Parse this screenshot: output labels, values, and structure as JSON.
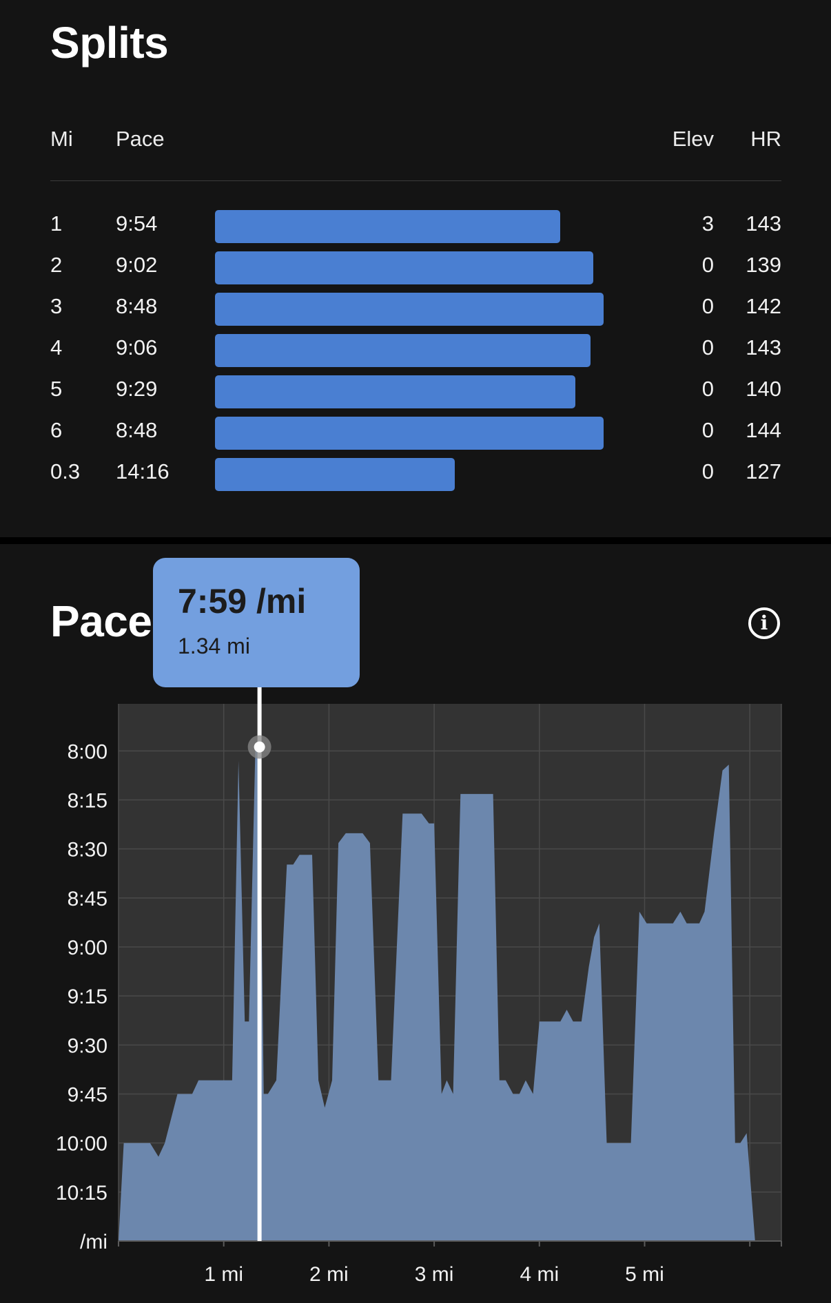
{
  "splits": {
    "title": "Splits",
    "headers": {
      "mi": "Mi",
      "pace": "Pace",
      "elev": "Elev",
      "hr": "HR"
    },
    "rows": [
      {
        "mi": "1",
        "pace": "9:54",
        "elev": "3",
        "hr": "143",
        "speed_mph": 6.06
      },
      {
        "mi": "2",
        "pace": "9:02",
        "elev": "0",
        "hr": "139",
        "speed_mph": 6.64
      },
      {
        "mi": "3",
        "pace": "8:48",
        "elev": "0",
        "hr": "142",
        "speed_mph": 6.82
      },
      {
        "mi": "4",
        "pace": "9:06",
        "elev": "0",
        "hr": "143",
        "speed_mph": 6.59
      },
      {
        "mi": "5",
        "pace": "9:29",
        "elev": "0",
        "hr": "140",
        "speed_mph": 6.33
      },
      {
        "mi": "6",
        "pace": "8:48",
        "elev": "0",
        "hr": "144",
        "speed_mph": 6.82
      },
      {
        "mi": "0.3",
        "pace": "14:16",
        "elev": "0",
        "hr": "127",
        "speed_mph": 4.21
      }
    ],
    "bar_color": "#4a7fd2"
  },
  "pace": {
    "title": "Pace",
    "info_icon": "info-icon",
    "tooltip": {
      "value": "7:59 /mi",
      "distance": "1.34 mi"
    }
  },
  "chart_data": {
    "type": "area",
    "y_ticks": [
      "8:00",
      "8:15",
      "8:30",
      "8:45",
      "9:00",
      "9:15",
      "9:30",
      "9:45",
      "10:00",
      "10:15"
    ],
    "y_unit_label": "/mi",
    "x_ticks": [
      "1 mi",
      "2 mi",
      "3 mi",
      "4 mi",
      "5 mi"
    ],
    "xlim_mi": [
      0,
      6.3
    ],
    "y_range_sec_per_mi": [
      7.76,
      10.5
    ],
    "y_axis_reversed": true,
    "grid": true,
    "fill_color": "#6c87ad",
    "plot_bg": "#333333",
    "cursor": {
      "x_mi": 1.34,
      "pace_min_per_mi": 7.98
    },
    "points": [
      [
        0.0,
        10.5
      ],
      [
        0.05,
        10.0
      ],
      [
        0.1,
        10.0
      ],
      [
        0.2,
        10.0
      ],
      [
        0.3,
        10.0
      ],
      [
        0.38,
        10.07
      ],
      [
        0.44,
        10.0
      ],
      [
        0.56,
        9.75
      ],
      [
        0.7,
        9.75
      ],
      [
        0.76,
        9.68
      ],
      [
        0.88,
        9.68
      ],
      [
        1.0,
        9.68
      ],
      [
        1.08,
        9.68
      ],
      [
        1.14,
        8.05
      ],
      [
        1.2,
        9.38
      ],
      [
        1.24,
        9.38
      ],
      [
        1.3,
        8.0
      ],
      [
        1.34,
        7.98
      ],
      [
        1.38,
        9.75
      ],
      [
        1.42,
        9.75
      ],
      [
        1.5,
        9.68
      ],
      [
        1.6,
        8.58
      ],
      [
        1.66,
        8.58
      ],
      [
        1.72,
        8.53
      ],
      [
        1.84,
        8.53
      ],
      [
        1.9,
        9.68
      ],
      [
        1.96,
        9.82
      ],
      [
        2.03,
        9.68
      ],
      [
        2.09,
        8.47
      ],
      [
        2.16,
        8.42
      ],
      [
        2.32,
        8.42
      ],
      [
        2.39,
        8.47
      ],
      [
        2.47,
        9.68
      ],
      [
        2.59,
        9.68
      ],
      [
        2.7,
        8.32
      ],
      [
        2.88,
        8.32
      ],
      [
        2.95,
        8.37
      ],
      [
        3.0,
        8.37
      ],
      [
        3.07,
        9.75
      ],
      [
        3.12,
        9.68
      ],
      [
        3.18,
        9.75
      ],
      [
        3.25,
        8.22
      ],
      [
        3.56,
        8.22
      ],
      [
        3.62,
        9.68
      ],
      [
        3.68,
        9.68
      ],
      [
        3.75,
        9.75
      ],
      [
        3.81,
        9.75
      ],
      [
        3.87,
        9.68
      ],
      [
        3.94,
        9.75
      ],
      [
        4.0,
        9.38
      ],
      [
        4.1,
        9.38
      ],
      [
        4.2,
        9.38
      ],
      [
        4.26,
        9.32
      ],
      [
        4.32,
        9.38
      ],
      [
        4.4,
        9.38
      ],
      [
        4.47,
        9.1
      ],
      [
        4.52,
        8.95
      ],
      [
        4.57,
        8.88
      ],
      [
        4.64,
        10.0
      ],
      [
        4.71,
        10.0
      ],
      [
        4.8,
        10.0
      ],
      [
        4.87,
        10.0
      ],
      [
        4.95,
        8.82
      ],
      [
        5.02,
        8.88
      ],
      [
        5.1,
        8.88
      ],
      [
        5.2,
        8.88
      ],
      [
        5.27,
        8.88
      ],
      [
        5.34,
        8.82
      ],
      [
        5.4,
        8.88
      ],
      [
        5.52,
        8.88
      ],
      [
        5.57,
        8.82
      ],
      [
        5.66,
        8.42
      ],
      [
        5.74,
        8.1
      ],
      [
        5.8,
        8.07
      ],
      [
        5.86,
        10.0
      ],
      [
        5.91,
        10.0
      ],
      [
        5.97,
        9.95
      ],
      [
        6.05,
        10.5
      ]
    ]
  }
}
